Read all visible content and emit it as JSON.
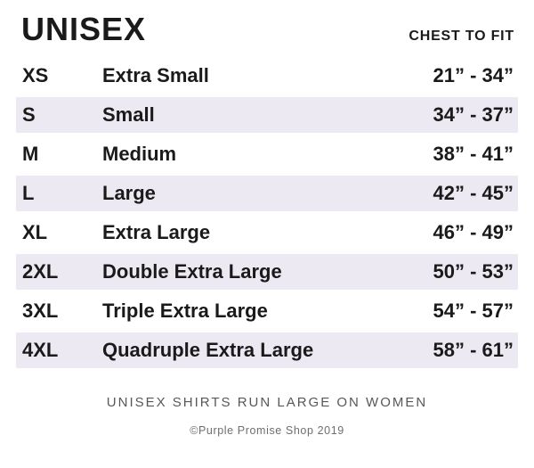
{
  "header": {
    "title": "UNISEX",
    "column_label": "CHEST TO FIT"
  },
  "table": {
    "rows": [
      {
        "abbr": "XS",
        "name": "Extra Small",
        "range": "21” - 34”"
      },
      {
        "abbr": "S",
        "name": "Small",
        "range": "34” - 37”"
      },
      {
        "abbr": "M",
        "name": "Medium",
        "range": "38” - 41”"
      },
      {
        "abbr": "L",
        "name": "Large",
        "range": "42” - 45”"
      },
      {
        "abbr": "XL",
        "name": "Extra Large",
        "range": "46” - 49”"
      },
      {
        "abbr": "2XL",
        "name": "Double Extra Large",
        "range": "50” - 53”"
      },
      {
        "abbr": "3XL",
        "name": "Triple Extra Large",
        "range": "54” - 57”"
      },
      {
        "abbr": "4XL",
        "name": "Quadruple Extra Large",
        "range": "58” - 61”"
      }
    ]
  },
  "footer": {
    "note": "UNISEX SHIRTS RUN LARGE ON WOMEN",
    "copyright": "©Purple Promise Shop 2019"
  },
  "colors": {
    "row_shade": "#EDE9F2",
    "text": "#1a1a1a",
    "note_gray": "#58585c",
    "copyright_gray": "#6f6d72"
  }
}
